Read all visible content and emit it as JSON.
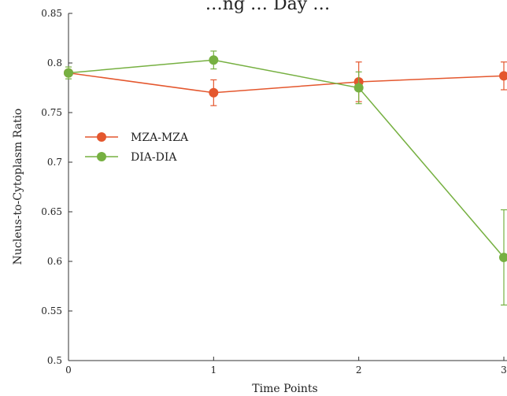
{
  "chart_data": {
    "type": "line",
    "title": "…ng … Day …",
    "xlabel": "Time Points",
    "ylabel": "Nucleus-to-Cytoplasm Ratio",
    "x": [
      0,
      1,
      2,
      3
    ],
    "x_tick_labels": [
      "0",
      "1",
      "2",
      "3"
    ],
    "xlim": [
      0,
      3
    ],
    "ylim": [
      0.5,
      0.85
    ],
    "y_ticks": [
      0.5,
      0.55,
      0.6,
      0.65,
      0.7,
      0.75,
      0.8,
      0.85
    ],
    "y_tick_labels": [
      "0.5",
      "0.55",
      "0.6",
      "0.65",
      "0.7",
      "0.75",
      "0.8",
      "0.85"
    ],
    "grid": false,
    "legend_position": "center-left",
    "series": [
      {
        "name": "MZA-MZA",
        "color": "#e4572e",
        "values": [
          0.79,
          0.77,
          0.781,
          0.787
        ],
        "errors": [
          0.003,
          0.013,
          0.02,
          0.014
        ]
      },
      {
        "name": "DIA-DIA",
        "color": "#76b041",
        "values": [
          0.79,
          0.803,
          0.775,
          0.604
        ],
        "errors": [
          0.006,
          0.009,
          0.016,
          0.048
        ]
      }
    ]
  }
}
